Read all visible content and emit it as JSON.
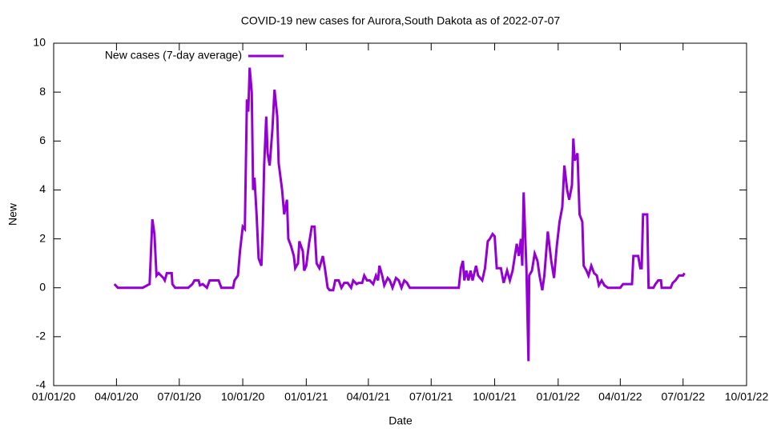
{
  "chart_data": {
    "type": "line",
    "title": "COVID-19 new cases for Aurora,South Dakota as of 2022-07-07",
    "x_label": "Date",
    "y_label": "New",
    "legend_position": "top-left",
    "xlim": [
      "2020-01-01",
      "2022-10-01"
    ],
    "xticks": [
      {
        "value": "2020-01-01",
        "label": "01/01/20"
      },
      {
        "value": "2020-04-01",
        "label": "04/01/20"
      },
      {
        "value": "2020-07-01",
        "label": "07/01/20"
      },
      {
        "value": "2020-10-01",
        "label": "10/01/20"
      },
      {
        "value": "2021-01-01",
        "label": "01/01/21"
      },
      {
        "value": "2021-04-01",
        "label": "04/01/21"
      },
      {
        "value": "2021-07-01",
        "label": "07/01/21"
      },
      {
        "value": "2021-10-01",
        "label": "10/01/21"
      },
      {
        "value": "2022-01-01",
        "label": "01/01/22"
      },
      {
        "value": "2022-04-01",
        "label": "04/01/22"
      },
      {
        "value": "2022-07-01",
        "label": "07/01/22"
      },
      {
        "value": "2022-10-01",
        "label": "10/01/22"
      }
    ],
    "ylim": [
      -4,
      10
    ],
    "yticks": [
      -4,
      -2,
      0,
      2,
      4,
      6,
      8,
      10
    ],
    "x": [
      "2020-03-29",
      "2020-04-03",
      "2020-05-09",
      "2020-05-19",
      "2020-05-23",
      "2020-05-26",
      "2020-05-29",
      "2020-06-01",
      "2020-06-08",
      "2020-06-10",
      "2020-06-13",
      "2020-06-20",
      "2020-06-21",
      "2020-06-25",
      "2020-07-14",
      "2020-07-20",
      "2020-07-23",
      "2020-07-29",
      "2020-07-31",
      "2020-08-04",
      "2020-08-10",
      "2020-08-14",
      "2020-08-27",
      "2020-08-31",
      "2020-09-17",
      "2020-09-19",
      "2020-09-24",
      "2020-09-27",
      "2020-10-01",
      "2020-10-04",
      "2020-10-07",
      "2020-10-09",
      "2020-10-11",
      "2020-10-14",
      "2020-10-16",
      "2020-10-18",
      "2020-10-21",
      "2020-10-24",
      "2020-10-28",
      "2020-10-30",
      "2020-11-01",
      "2020-11-04",
      "2020-11-06",
      "2020-11-09",
      "2020-11-13",
      "2020-11-16",
      "2020-11-20",
      "2020-11-22",
      "2020-11-27",
      "2020-11-30",
      "2020-12-04",
      "2020-12-06",
      "2020-12-10",
      "2020-12-14",
      "2020-12-16",
      "2020-12-20",
      "2020-12-22",
      "2020-12-27",
      "2020-12-29",
      "2021-01-01",
      "2021-01-05",
      "2021-01-09",
      "2021-01-13",
      "2021-01-16",
      "2021-01-20",
      "2021-01-25",
      "2021-01-28",
      "2021-02-01",
      "2021-02-04",
      "2021-02-09",
      "2021-02-12",
      "2021-02-17",
      "2021-02-21",
      "2021-02-25",
      "2021-03-02",
      "2021-03-07",
      "2021-03-10",
      "2021-03-15",
      "2021-03-18",
      "2021-03-23",
      "2021-03-26",
      "2021-03-30",
      "2021-04-03",
      "2021-04-08",
      "2021-04-12",
      "2021-04-15",
      "2021-04-17",
      "2021-04-21",
      "2021-04-24",
      "2021-04-29",
      "2021-05-02",
      "2021-05-06",
      "2021-05-11",
      "2021-05-15",
      "2021-05-19",
      "2021-05-23",
      "2021-05-27",
      "2021-05-31",
      "2021-08-10",
      "2021-08-13",
      "2021-08-16",
      "2021-08-18",
      "2021-08-21",
      "2021-08-24",
      "2021-08-27",
      "2021-08-30",
      "2021-09-04",
      "2021-09-07",
      "2021-09-13",
      "2021-09-17",
      "2021-09-21",
      "2021-09-24",
      "2021-09-28",
      "2021-10-01",
      "2021-10-04",
      "2021-10-10",
      "2021-10-14",
      "2021-10-19",
      "2021-10-23",
      "2021-10-27",
      "2021-11-02",
      "2021-11-05",
      "2021-11-08",
      "2021-11-10",
      "2021-11-12",
      "2021-11-16",
      "2021-11-19",
      "2021-11-20",
      "2021-11-24",
      "2021-11-28",
      "2021-12-02",
      "2021-12-05",
      "2021-12-09",
      "2021-12-12",
      "2021-12-17",
      "2021-12-22",
      "2021-12-26",
      "2021-12-30",
      "2022-01-03",
      "2022-01-07",
      "2022-01-10",
      "2022-01-14",
      "2022-01-17",
      "2022-01-21",
      "2022-01-23",
      "2022-01-25",
      "2022-01-29",
      "2022-02-01",
      "2022-02-05",
      "2022-02-07",
      "2022-02-11",
      "2022-02-14",
      "2022-02-18",
      "2022-02-22",
      "2022-02-26",
      "2022-03-01",
      "2022-03-05",
      "2022-03-09",
      "2022-03-14",
      "2022-04-01",
      "2022-04-05",
      "2022-04-18",
      "2022-04-20",
      "2022-04-27",
      "2022-04-30",
      "2022-05-02",
      "2022-05-04",
      "2022-05-10",
      "2022-05-12",
      "2022-05-19",
      "2022-05-22",
      "2022-05-26",
      "2022-05-30",
      "2022-05-31",
      "2022-06-13",
      "2022-06-16",
      "2022-06-20",
      "2022-06-25",
      "2022-07-01",
      "2022-07-03"
    ],
    "series": [
      {
        "name": "New cases (7-day average)",
        "color": "#9400d3",
        "values": [
          0.15,
          0,
          0,
          0.15,
          2.8,
          2.2,
          0.5,
          0.6,
          0.4,
          0.3,
          0.6,
          0.6,
          0.15,
          0,
          0,
          0.15,
          0.3,
          0.3,
          0.1,
          0.15,
          0,
          0.3,
          0.3,
          0,
          0,
          0.3,
          0.5,
          1.5,
          2.5,
          2.4,
          7.7,
          7.2,
          9,
          8,
          4,
          4.5,
          3,
          1.2,
          0.9,
          2.5,
          5,
          7,
          5.5,
          5,
          6.5,
          8.1,
          7,
          5.1,
          4,
          3,
          3.6,
          2,
          1.7,
          1.3,
          0.8,
          1,
          1.9,
          1.5,
          0.7,
          0.9,
          1.8,
          2.5,
          2.5,
          1,
          0.8,
          1.3,
          0.8,
          0,
          -0.1,
          -0.1,
          0.3,
          0.3,
          0,
          0.2,
          0.2,
          0,
          0.3,
          0.15,
          0.2,
          0.2,
          0.5,
          0.3,
          0.3,
          0.15,
          0.5,
          0.3,
          0.9,
          0.5,
          0.1,
          0.4,
          0.3,
          0,
          0.4,
          0.3,
          0,
          0.3,
          0.2,
          0,
          0,
          0.8,
          1.1,
          0.3,
          0.7,
          0.3,
          0.7,
          0.3,
          0.9,
          0.5,
          0.3,
          0.8,
          1.9,
          2,
          2.2,
          2.1,
          0.8,
          0.8,
          0.2,
          0.7,
          0.3,
          0.7,
          1.8,
          1.3,
          2,
          0.9,
          3.9,
          0.8,
          -3,
          0.5,
          0.7,
          1.4,
          1.1,
          0.5,
          -0.1,
          0.5,
          2.3,
          1.1,
          0.4,
          1.7,
          2.7,
          3.3,
          5,
          4,
          3.6,
          4.2,
          6.1,
          5.2,
          5.5,
          3,
          2.7,
          0.9,
          0.7,
          0.5,
          0.9,
          0.6,
          0.5,
          0.1,
          0.3,
          0.1,
          0,
          0,
          0.15,
          0.15,
          1.3,
          1.3,
          0.8,
          0.8,
          3,
          3,
          0,
          0,
          0.15,
          0.3,
          0.3,
          0,
          0,
          0.2,
          0.3,
          0.5,
          0.5,
          0.6
        ]
      }
    ]
  }
}
